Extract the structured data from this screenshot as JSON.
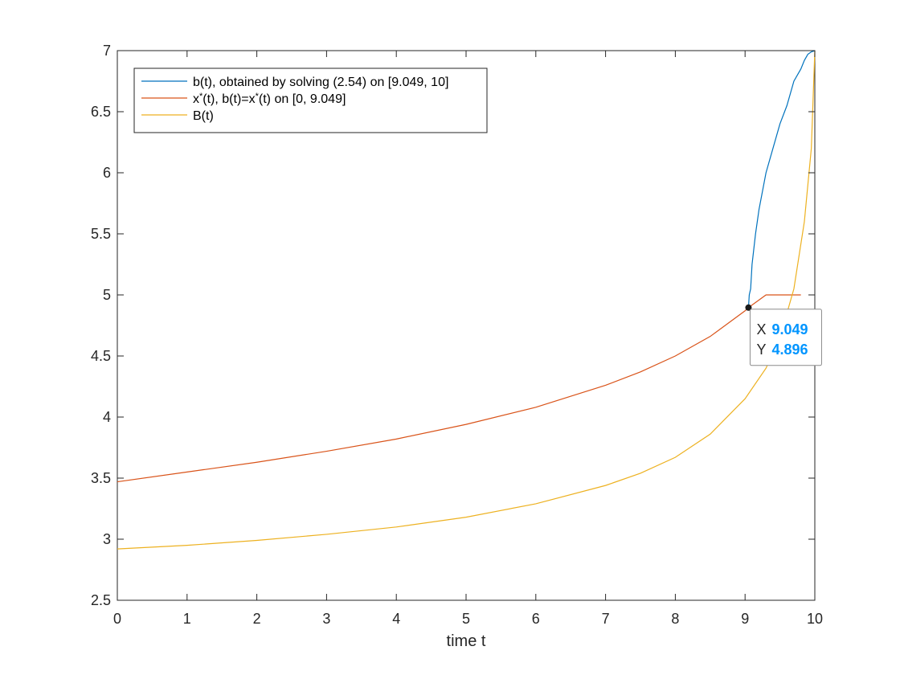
{
  "chart_data": {
    "type": "line",
    "xlabel": "time t",
    "ylabel": "",
    "xlim": [
      0,
      10
    ],
    "ylim": [
      2.5,
      7
    ],
    "x_ticks": [
      "0",
      "1",
      "2",
      "3",
      "4",
      "5",
      "6",
      "7",
      "8",
      "9",
      "10"
    ],
    "y_ticks": [
      "2.5",
      "3",
      "3.5",
      "4",
      "4.5",
      "5",
      "5.5",
      "6",
      "6.5",
      "7"
    ],
    "grid": false,
    "legend_position": "top-left",
    "series": [
      {
        "name": "b(t), obtained by solving (2.54) on [9.049, 10]",
        "color": "#0072BD",
        "x": [
          9.049,
          9.06,
          9.08,
          9.1,
          9.15,
          9.2,
          9.3,
          9.4,
          9.5,
          9.6,
          9.7,
          9.8,
          9.85,
          9.9,
          9.95,
          10.0
        ],
        "y": [
          4.896,
          5.0,
          5.05,
          5.25,
          5.5,
          5.7,
          6.0,
          6.2,
          6.4,
          6.55,
          6.75,
          6.85,
          6.92,
          6.97,
          6.99,
          7.0
        ]
      },
      {
        "name": "x*(t), b(t)=x*(t) on [0, 9.049]",
        "color": "#D95319",
        "x": [
          0,
          1,
          2,
          3,
          4,
          5,
          6,
          7,
          7.5,
          8,
          8.5,
          9,
          9.049,
          9.3,
          9.5,
          9.75,
          9.8
        ],
        "y": [
          3.47,
          3.55,
          3.63,
          3.72,
          3.82,
          3.94,
          4.08,
          4.26,
          4.37,
          4.5,
          4.66,
          4.87,
          4.896,
          5.0,
          5.0,
          5.0,
          5.0
        ]
      },
      {
        "name": "B(t)",
        "color": "#EDB120",
        "x": [
          0,
          1,
          2,
          3,
          4,
          5,
          6,
          7,
          7.5,
          8,
          8.5,
          9,
          9.3,
          9.5,
          9.7,
          9.85,
          9.95,
          10.0
        ],
        "y": [
          2.92,
          2.95,
          2.99,
          3.04,
          3.1,
          3.18,
          3.29,
          3.44,
          3.54,
          3.67,
          3.86,
          4.15,
          4.4,
          4.65,
          5.05,
          5.6,
          6.2,
          7.0
        ]
      }
    ],
    "legend": {
      "entries": [
        {
          "parts": [
            {
              "t": "b(t), obtained by solving (2.54) on [9.049, 10]"
            }
          ]
        },
        {
          "parts": [
            {
              "t": "x"
            },
            {
              "t": "*",
              "sup": true
            },
            {
              "t": "(t), b(t)=x"
            },
            {
              "t": "*",
              "sup": true
            },
            {
              "t": "(t) on [0, 9.049]"
            }
          ]
        },
        {
          "parts": [
            {
              "t": "B(t)"
            }
          ]
        }
      ]
    },
    "datatip": {
      "x": 9.049,
      "y": 4.896,
      "x_key": "X",
      "y_key": "Y",
      "x_text": "9.049",
      "y_text": "4.896",
      "value_color": "#0095FF"
    }
  }
}
